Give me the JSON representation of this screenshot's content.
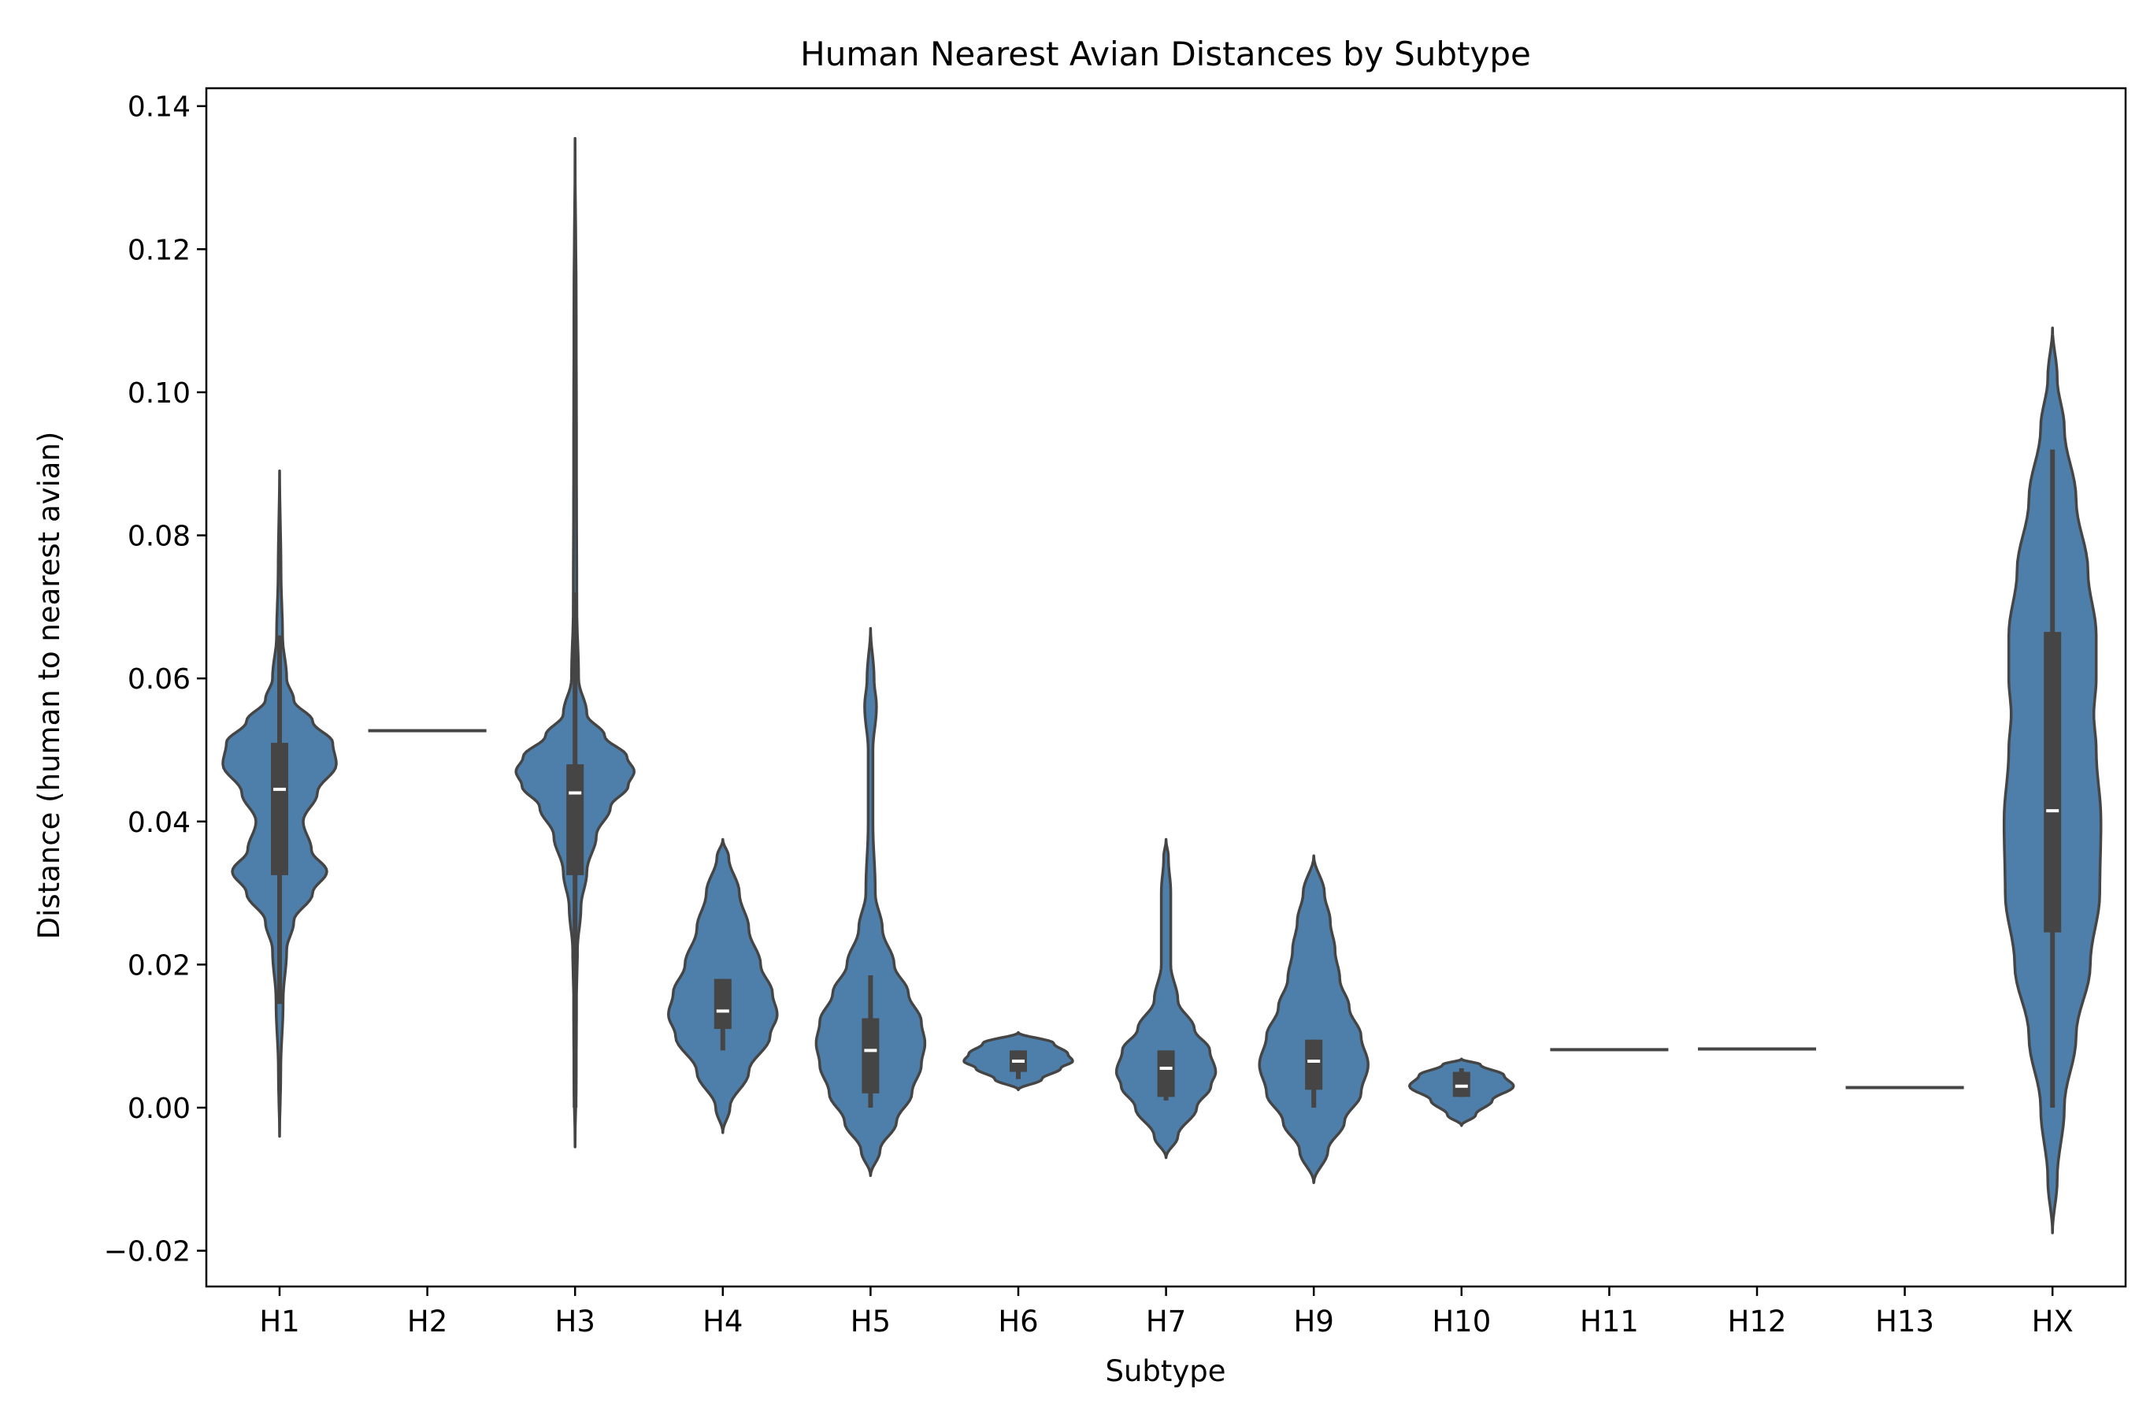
{
  "chart_data": {
    "type": "violin",
    "title": "Human Nearest Avian Distances by Subtype",
    "xlabel": "Subtype",
    "ylabel": "Distance (human to nearest avian)",
    "ylim": [
      -0.025,
      0.1425
    ],
    "yticks": [
      -0.02,
      0.0,
      0.02,
      0.04,
      0.06,
      0.08,
      0.1,
      0.12,
      0.14
    ],
    "ytick_labels": [
      "−0.02",
      "0.00",
      "0.02",
      "0.04",
      "0.06",
      "0.08",
      "0.10",
      "0.12",
      "0.14"
    ],
    "grid": false,
    "legend": "none",
    "colors": {
      "fill": "#4e7faa",
      "edge": "#454545",
      "median": "#ffffff"
    },
    "categories": [
      "H1",
      "H2",
      "H3",
      "H4",
      "H5",
      "H6",
      "H7",
      "H9",
      "H10",
      "H11",
      "H12",
      "H13",
      "HX"
    ],
    "violins": [
      {
        "name": "H1",
        "min": -0.004,
        "max": 0.089,
        "whisker_low": 0.0145,
        "whisker_high": 0.066,
        "q1": 0.0325,
        "median": 0.0445,
        "q3": 0.051,
        "density": [
          [
            -0.004,
            0.0
          ],
          [
            0.005,
            0.001
          ],
          [
            0.015,
            0.003
          ],
          [
            0.022,
            0.006
          ],
          [
            0.026,
            0.012
          ],
          [
            0.03,
            0.028
          ],
          [
            0.033,
            0.04
          ],
          [
            0.036,
            0.027
          ],
          [
            0.04,
            0.02
          ],
          [
            0.044,
            0.032
          ],
          [
            0.048,
            0.048
          ],
          [
            0.051,
            0.045
          ],
          [
            0.054,
            0.028
          ],
          [
            0.057,
            0.012
          ],
          [
            0.06,
            0.006
          ],
          [
            0.066,
            0.0025
          ],
          [
            0.075,
            0.0012
          ],
          [
            0.089,
            0.0
          ]
        ]
      },
      {
        "name": "H2",
        "single": 0.0527
      },
      {
        "name": "H3",
        "min": -0.0055,
        "max": 0.1355,
        "whisker_low": 0.0,
        "whisker_high": 0.072,
        "q1": 0.0325,
        "median": 0.044,
        "q3": 0.048,
        "density": [
          [
            -0.0055,
            0.0
          ],
          [
            0.005,
            0.001
          ],
          [
            0.015,
            0.0012
          ],
          [
            0.022,
            0.002
          ],
          [
            0.028,
            0.005
          ],
          [
            0.033,
            0.01
          ],
          [
            0.038,
            0.018
          ],
          [
            0.042,
            0.03
          ],
          [
            0.045,
            0.045
          ],
          [
            0.047,
            0.05
          ],
          [
            0.049,
            0.044
          ],
          [
            0.052,
            0.025
          ],
          [
            0.055,
            0.01
          ],
          [
            0.06,
            0.003
          ],
          [
            0.07,
            0.0015
          ],
          [
            0.09,
            0.0012
          ],
          [
            0.11,
            0.001
          ],
          [
            0.1355,
            0.0
          ]
        ]
      },
      {
        "name": "H4",
        "min": -0.0035,
        "max": 0.0375,
        "whisker_low": 0.008,
        "whisker_high": 0.018,
        "q1": 0.011,
        "median": 0.0135,
        "q3": 0.018,
        "density": [
          [
            -0.0035,
            0.0
          ],
          [
            0.0,
            0.006
          ],
          [
            0.005,
            0.022
          ],
          [
            0.01,
            0.04
          ],
          [
            0.013,
            0.046
          ],
          [
            0.016,
            0.042
          ],
          [
            0.02,
            0.032
          ],
          [
            0.025,
            0.022
          ],
          [
            0.03,
            0.014
          ],
          [
            0.035,
            0.005
          ],
          [
            0.0375,
            0.0
          ]
        ]
      },
      {
        "name": "H5",
        "min": -0.0095,
        "max": 0.067,
        "whisker_low": 0.0,
        "whisker_high": 0.0185,
        "q1": 0.002,
        "median": 0.008,
        "q3": 0.0125,
        "density": [
          [
            -0.0095,
            0.0
          ],
          [
            -0.006,
            0.008
          ],
          [
            -0.002,
            0.022
          ],
          [
            0.002,
            0.035
          ],
          [
            0.006,
            0.043
          ],
          [
            0.009,
            0.046
          ],
          [
            0.012,
            0.043
          ],
          [
            0.016,
            0.032
          ],
          [
            0.02,
            0.02
          ],
          [
            0.025,
            0.01
          ],
          [
            0.03,
            0.004
          ],
          [
            0.04,
            0.002
          ],
          [
            0.05,
            0.002
          ],
          [
            0.056,
            0.005
          ],
          [
            0.06,
            0.003
          ],
          [
            0.067,
            0.0
          ]
        ]
      },
      {
        "name": "H6",
        "min": 0.0025,
        "max": 0.0105,
        "whisker_low": 0.004,
        "whisker_high": 0.008,
        "q1": 0.005,
        "median": 0.0065,
        "q3": 0.008,
        "density": [
          [
            0.0025,
            0.0
          ],
          [
            0.004,
            0.02
          ],
          [
            0.0055,
            0.036
          ],
          [
            0.0065,
            0.046
          ],
          [
            0.0075,
            0.042
          ],
          [
            0.009,
            0.03
          ],
          [
            0.0105,
            0.0
          ]
        ]
      },
      {
        "name": "H7",
        "min": -0.007,
        "max": 0.0375,
        "whisker_low": 0.001,
        "whisker_high": 0.008,
        "q1": 0.0015,
        "median": 0.0055,
        "q3": 0.008,
        "density": [
          [
            -0.007,
            0.0
          ],
          [
            -0.004,
            0.01
          ],
          [
            0.0,
            0.026
          ],
          [
            0.003,
            0.038
          ],
          [
            0.005,
            0.042
          ],
          [
            0.008,
            0.037
          ],
          [
            0.011,
            0.024
          ],
          [
            0.015,
            0.01
          ],
          [
            0.02,
            0.004
          ],
          [
            0.025,
            0.004
          ],
          [
            0.03,
            0.004
          ],
          [
            0.035,
            0.002
          ],
          [
            0.0375,
            0.0
          ]
        ]
      },
      {
        "name": "H9",
        "min": -0.0105,
        "max": 0.0352,
        "whisker_low": 0.0,
        "whisker_high": 0.0095,
        "q1": 0.0025,
        "median": 0.0065,
        "q3": 0.0095,
        "density": [
          [
            -0.0105,
            0.0
          ],
          [
            -0.006,
            0.012
          ],
          [
            -0.002,
            0.026
          ],
          [
            0.002,
            0.04
          ],
          [
            0.006,
            0.046
          ],
          [
            0.01,
            0.04
          ],
          [
            0.014,
            0.03
          ],
          [
            0.018,
            0.022
          ],
          [
            0.022,
            0.018
          ],
          [
            0.026,
            0.014
          ],
          [
            0.03,
            0.009
          ],
          [
            0.0352,
            0.0
          ]
        ]
      },
      {
        "name": "H10",
        "min": -0.0025,
        "max": 0.0068,
        "whisker_low": 0.0015,
        "whisker_high": 0.0055,
        "q1": 0.0015,
        "median": 0.003,
        "q3": 0.005,
        "density": [
          [
            -0.0025,
            0.0
          ],
          [
            -0.001,
            0.012
          ],
          [
            0.001,
            0.026
          ],
          [
            0.003,
            0.044
          ],
          [
            0.0045,
            0.036
          ],
          [
            0.006,
            0.016
          ],
          [
            0.0068,
            0.0
          ]
        ]
      },
      {
        "name": "H11",
        "single": 0.0081
      },
      {
        "name": "H12",
        "single": 0.0082
      },
      {
        "name": "H13",
        "single": 0.0028
      },
      {
        "name": "HX",
        "min": -0.0175,
        "max": 0.109,
        "whisker_low": 0.0,
        "whisker_high": 0.092,
        "q1": 0.0245,
        "median": 0.0415,
        "q3": 0.0665,
        "density": [
          [
            -0.0175,
            0.0
          ],
          [
            -0.01,
            0.004
          ],
          [
            0.0,
            0.01
          ],
          [
            0.01,
            0.02
          ],
          [
            0.02,
            0.032
          ],
          [
            0.03,
            0.04
          ],
          [
            0.04,
            0.041
          ],
          [
            0.05,
            0.037
          ],
          [
            0.055,
            0.035
          ],
          [
            0.06,
            0.037
          ],
          [
            0.066,
            0.037
          ],
          [
            0.075,
            0.03
          ],
          [
            0.085,
            0.02
          ],
          [
            0.095,
            0.01
          ],
          [
            0.102,
            0.004
          ],
          [
            0.109,
            0.0
          ]
        ]
      }
    ]
  }
}
